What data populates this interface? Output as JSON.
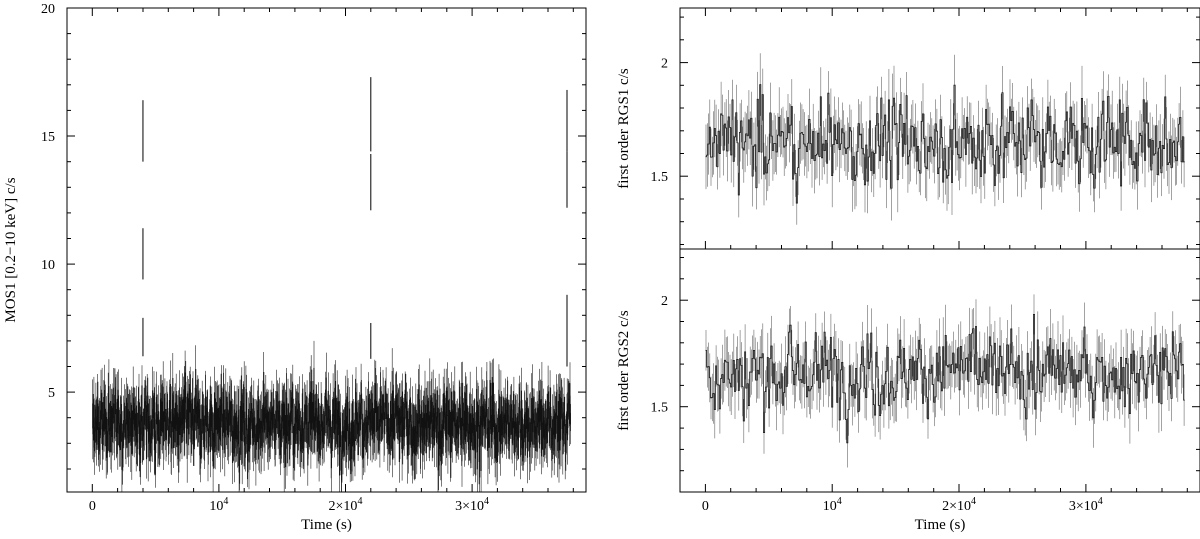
{
  "chart_data": [
    {
      "type": "line",
      "panel": "MOS1 light curve",
      "xlabel": "Time (s)",
      "ylabel": "MOS1 [0.2−10 keV] c/s",
      "xlim": [
        -2000,
        39000
      ],
      "ylim": [
        1.1,
        20
      ],
      "x_ticks": [
        {
          "value": 0,
          "base": "0",
          "exp": ""
        },
        {
          "value": 10000,
          "base": "10",
          "exp": "4"
        },
        {
          "value": 20000,
          "base": "2×10",
          "exp": "4"
        },
        {
          "value": 30000,
          "base": "3×10",
          "exp": "4"
        }
      ],
      "y_ticks": [
        {
          "value": 5,
          "label": "5"
        },
        {
          "value": 10,
          "label": "10"
        },
        {
          "value": 15,
          "label": "15"
        },
        {
          "value": 20,
          "label": "20"
        }
      ],
      "series": [
        {
          "mean": 3.8,
          "amplitude": 1.2,
          "x_start": 0,
          "x_end": 37800,
          "flares": [
            {
              "x": 4000,
              "y_low": 14.0,
              "y_high": 16.4
            },
            {
              "x": 4000,
              "y_low": 9.4,
              "y_high": 11.4
            },
            {
              "x": 4000,
              "y_low": 6.4,
              "y_high": 7.9
            },
            {
              "x": 22000,
              "y_low": 14.4,
              "y_high": 17.3
            },
            {
              "x": 22000,
              "y_low": 12.1,
              "y_high": 14.3
            },
            {
              "x": 22000,
              "y_low": 6.3,
              "y_high": 7.7
            },
            {
              "x": 37500,
              "y_low": 14.4,
              "y_high": 16.8
            },
            {
              "x": 37500,
              "y_low": 12.2,
              "y_high": 14.4
            },
            {
              "x": 37500,
              "y_low": 6.0,
              "y_high": 8.8
            }
          ]
        }
      ],
      "grid": false,
      "legend": "none"
    },
    {
      "type": "line",
      "panel": "RGS1 light curve",
      "xlabel": "",
      "ylabel": "first order RGS1 c/s",
      "xlim": [
        -2000,
        39000
      ],
      "ylim": [
        1.18,
        2.24
      ],
      "y_ticks": [
        {
          "value": 1.5,
          "label": "1.5"
        },
        {
          "value": 2,
          "label": "2"
        }
      ],
      "series": [
        {
          "mean": 1.65,
          "amplitude": 0.16,
          "x_start": 0,
          "x_end": 37800
        }
      ],
      "grid": false,
      "legend": "none"
    },
    {
      "type": "line",
      "panel": "RGS2 light curve",
      "xlabel": "Time (s)",
      "ylabel": "first order RGS2 c/s",
      "xlim": [
        -2000,
        39000
      ],
      "ylim": [
        1.1,
        2.24
      ],
      "x_ticks": [
        {
          "value": 0,
          "base": "0",
          "exp": ""
        },
        {
          "value": 10000,
          "base": "10",
          "exp": "4"
        },
        {
          "value": 20000,
          "base": "2×10",
          "exp": "4"
        },
        {
          "value": 30000,
          "base": "3×10",
          "exp": "4"
        }
      ],
      "y_ticks": [
        {
          "value": 1.5,
          "label": "1.5"
        },
        {
          "value": 2,
          "label": "2"
        }
      ],
      "series": [
        {
          "mean": 1.66,
          "amplitude": 0.16,
          "x_start": 0,
          "x_end": 37800
        }
      ],
      "grid": false,
      "legend": "none"
    }
  ]
}
